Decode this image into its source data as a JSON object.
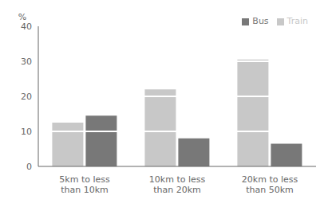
{
  "chart_data": {
    "type": "bar",
    "categories": [
      "5km to less\nthan 10km",
      "10km to less\nthan 20km",
      "20km to less\nthan 50km"
    ],
    "series": [
      {
        "name": "Train",
        "color": "#c8c8c8",
        "values": [
          12.5,
          22.0,
          30.5
        ]
      },
      {
        "name": "Bus",
        "color": "#787878",
        "values": [
          14.5,
          8.0,
          6.5
        ]
      }
    ],
    "y_label": "%",
    "ylim": [
      0,
      40
    ],
    "yticks": [
      0,
      10,
      20,
      30,
      40
    ],
    "grid": false,
    "legend": "upper right"
  }
}
